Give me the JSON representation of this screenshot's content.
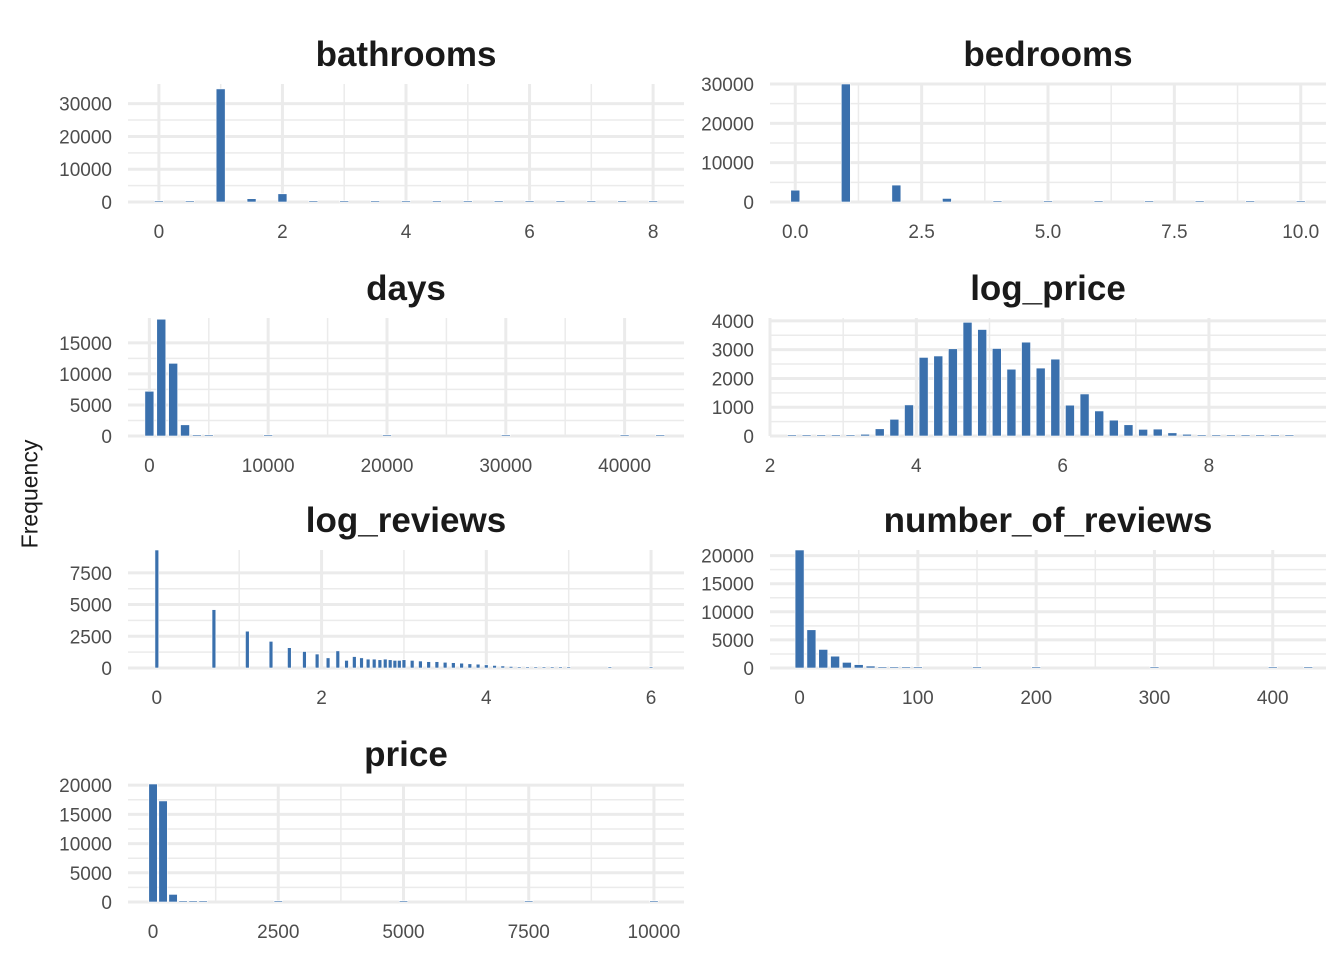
{
  "figure": {
    "ylabel": "Frequency",
    "bar_color": "#3a70ad",
    "grid_color": "#ebebeb",
    "background": "#ffffff"
  },
  "chart_data": [
    {
      "type": "bar",
      "title": "bathrooms",
      "x": [
        0,
        0.5,
        1,
        1.5,
        2,
        2.5,
        3,
        3.5,
        4,
        4.5,
        5,
        5.5,
        6,
        6.5,
        7,
        7.5,
        8
      ],
      "values": [
        100,
        0,
        34500,
        1000,
        2500,
        150,
        60,
        20,
        20,
        5,
        5,
        3,
        3,
        2,
        1,
        1,
        2
      ],
      "xlim": [
        -0.5,
        8.5
      ],
      "ylim": [
        0,
        36000
      ],
      "xticks": [
        0,
        2,
        4,
        6,
        8
      ],
      "xtick_labels": [
        "0",
        "2",
        "4",
        "6",
        "8"
      ],
      "yticks": [
        0,
        10000,
        20000,
        30000
      ],
      "ytick_labels": [
        "0",
        "10000",
        "20000",
        "30000"
      ],
      "grid": true
    },
    {
      "type": "bar",
      "title": "bedrooms",
      "x": [
        0,
        1,
        2,
        3,
        4,
        5,
        6,
        7,
        8,
        9,
        10
      ],
      "values": [
        3000,
        30000,
        4300,
        900,
        150,
        40,
        15,
        5,
        3,
        1,
        1
      ],
      "xlim": [
        -0.5,
        10.5
      ],
      "ylim": [
        0,
        30000
      ],
      "xticks": [
        0,
        2.5,
        5,
        7.5,
        10
      ],
      "xtick_labels": [
        "0.0",
        "2.5",
        "5.0",
        "7.5",
        "10.0"
      ],
      "yticks": [
        0,
        10000,
        20000,
        30000
      ],
      "ytick_labels": [
        "0",
        "10000",
        "20000",
        "30000"
      ],
      "grid": true
    },
    {
      "type": "bar",
      "title": "days",
      "x": [
        0,
        1000,
        2000,
        3000,
        4000,
        5000,
        10000,
        20000,
        30000,
        40000,
        43000
      ],
      "values": [
        7200,
        18800,
        11700,
        1800,
        150,
        20,
        0,
        0,
        0,
        0,
        5
      ],
      "xlim": [
        -1800,
        45000
      ],
      "ylim": [
        0,
        19000
      ],
      "xticks": [
        0,
        10000,
        20000,
        30000,
        40000
      ],
      "xtick_labels": [
        "0",
        "10000",
        "20000",
        "30000",
        "40000"
      ],
      "yticks": [
        0,
        5000,
        10000,
        15000
      ],
      "ytick_labels": [
        "0",
        "5000",
        "10000",
        "15000"
      ],
      "grid": true
    },
    {
      "type": "bar",
      "title": "log_price",
      "x": [
        2.3,
        2.5,
        2.7,
        2.9,
        3.1,
        3.3,
        3.5,
        3.7,
        3.9,
        4.1,
        4.3,
        4.5,
        4.7,
        4.9,
        5.1,
        5.3,
        5.5,
        5.7,
        5.9,
        6.1,
        6.3,
        6.5,
        6.7,
        6.9,
        7.1,
        7.3,
        7.5,
        7.7,
        7.9,
        8.1,
        8.3,
        8.5,
        8.7,
        8.9,
        9.1
      ],
      "values": [
        10,
        5,
        10,
        20,
        30,
        60,
        250,
        580,
        1080,
        2730,
        2780,
        3030,
        3950,
        3700,
        3040,
        2320,
        3260,
        2360,
        2670,
        1070,
        1460,
        870,
        550,
        390,
        230,
        240,
        110,
        60,
        35,
        15,
        10,
        5,
        3,
        2,
        2
      ],
      "xlim": [
        2.0,
        9.6
      ],
      "ylim": [
        0,
        4100
      ],
      "xticks": [
        2,
        4,
        6,
        8
      ],
      "xtick_labels": [
        "2",
        "4",
        "6",
        "8"
      ],
      "yticks": [
        0,
        1000,
        2000,
        3000,
        4000
      ],
      "ytick_labels": [
        "0",
        "1000",
        "2000",
        "3000",
        "4000"
      ],
      "grid": true
    },
    {
      "type": "bar",
      "title": "log_reviews",
      "x": [
        0,
        0.693,
        1.099,
        1.386,
        1.609,
        1.792,
        1.946,
        2.079,
        2.197,
        2.303,
        2.398,
        2.485,
        2.565,
        2.639,
        2.708,
        2.773,
        2.833,
        2.89,
        2.944,
        3.0,
        3.1,
        3.2,
        3.3,
        3.4,
        3.5,
        3.6,
        3.7,
        3.8,
        3.9,
        4.0,
        4.1,
        4.2,
        4.3,
        4.4,
        4.5,
        4.6,
        4.7,
        4.8,
        4.9,
        5.0,
        5.5,
        6.0
      ],
      "values": [
        9300,
        4600,
        2900,
        2100,
        1600,
        1300,
        1100,
        800,
        1350,
        600,
        900,
        800,
        700,
        700,
        650,
        700,
        650,
        600,
        600,
        650,
        600,
        550,
        500,
        500,
        450,
        420,
        380,
        330,
        300,
        250,
        200,
        160,
        120,
        90,
        70,
        50,
        30,
        20,
        10,
        8,
        3,
        1
      ],
      "xlim": [
        -0.35,
        6.4
      ],
      "ylim": [
        0,
        9300
      ],
      "xticks": [
        0,
        2,
        4,
        6
      ],
      "xtick_labels": [
        "0",
        "2",
        "4",
        "6"
      ],
      "yticks": [
        0,
        2500,
        5000,
        7500
      ],
      "ytick_labels": [
        "0",
        "2500",
        "5000",
        "7500"
      ],
      "grid": true
    },
    {
      "type": "bar",
      "title": "number_of_reviews",
      "x": [
        0,
        10,
        20,
        30,
        40,
        50,
        60,
        70,
        80,
        90,
        100,
        150,
        200,
        300,
        400,
        430
      ],
      "values": [
        21000,
        6800,
        3300,
        2100,
        1000,
        600,
        350,
        200,
        130,
        80,
        50,
        20,
        10,
        5,
        2,
        1
      ],
      "xlim": [
        -25,
        445
      ],
      "ylim": [
        0,
        21000
      ],
      "xticks": [
        0,
        100,
        200,
        300,
        400
      ],
      "xtick_labels": [
        "0",
        "100",
        "200",
        "300",
        "400"
      ],
      "yticks": [
        0,
        5000,
        10000,
        15000,
        20000
      ],
      "ytick_labels": [
        "0",
        "5000",
        "10000",
        "15000",
        "20000"
      ],
      "grid": true
    },
    {
      "type": "bar",
      "title": "price",
      "x": [
        0,
        200,
        400,
        600,
        800,
        1000,
        2500,
        5000,
        7500,
        10000
      ],
      "values": [
        20200,
        17300,
        1300,
        200,
        60,
        20,
        5,
        2,
        1,
        1
      ],
      "xlim": [
        -500,
        10600
      ],
      "ylim": [
        0,
        20200
      ],
      "xticks": [
        0,
        2500,
        5000,
        7500,
        10000
      ],
      "xtick_labels": [
        "0",
        "2500",
        "5000",
        "7500",
        "10000"
      ],
      "yticks": [
        0,
        5000,
        10000,
        15000,
        20000
      ],
      "ytick_labels": [
        "0",
        "5000",
        "10000",
        "15000",
        "20000"
      ],
      "grid": true
    }
  ]
}
